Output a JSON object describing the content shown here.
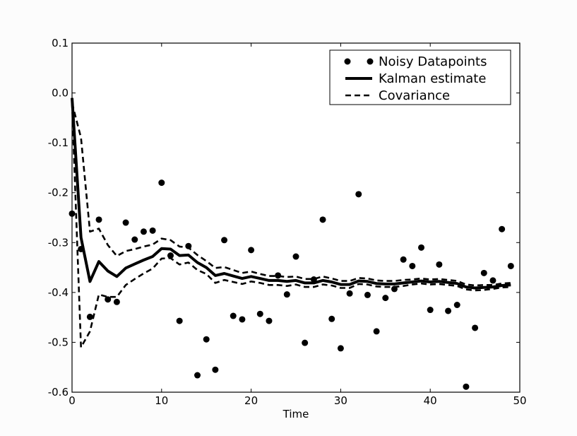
{
  "chart_data": {
    "type": "line",
    "title": "",
    "xlabel": "Time",
    "ylabel": "",
    "xlim": [
      0,
      50
    ],
    "ylim": [
      -0.6,
      0.1
    ],
    "xticks": [
      0,
      10,
      20,
      30,
      40,
      50
    ],
    "xtick_labels": [
      "0",
      "10",
      "20",
      "30",
      "40",
      "50"
    ],
    "yticks": [
      0.1,
      0.0,
      -0.1,
      -0.2,
      -0.3,
      -0.4,
      -0.5,
      -0.6
    ],
    "ytick_labels": [
      "0.1",
      "0.0",
      "-0.1",
      "-0.2",
      "-0.3",
      "-0.4",
      "-0.5",
      "-0.6"
    ],
    "grid": false,
    "legend": {
      "position": "top-right",
      "entries": [
        {
          "label": "Noisy Datapoints",
          "style": "markers"
        },
        {
          "label": "Kalman estimate",
          "style": "solid"
        },
        {
          "label": "Covariance",
          "style": "dashed"
        }
      ]
    },
    "colors": {
      "series": "#000000",
      "background": "#fcfcfc",
      "plot_area": "#ffffff"
    },
    "series": [
      {
        "name": "Noisy Datapoints",
        "style": "markers",
        "x": [
          0,
          1,
          2,
          3,
          4,
          5,
          6,
          7,
          8,
          9,
          10,
          11,
          12,
          13,
          14,
          15,
          16,
          17,
          18,
          19,
          20,
          21,
          22,
          23,
          24,
          25,
          26,
          27,
          28,
          29,
          30,
          31,
          32,
          33,
          34,
          35,
          36,
          37,
          38,
          39,
          40,
          41,
          42,
          43,
          44,
          45,
          46,
          47,
          48,
          49
        ],
        "y": [
          -0.242,
          -0.313,
          -0.449,
          -0.254,
          -0.414,
          -0.419,
          -0.26,
          -0.294,
          -0.278,
          -0.276,
          -0.18,
          -0.326,
          -0.457,
          -0.307,
          -0.566,
          -0.494,
          -0.555,
          -0.295,
          -0.447,
          -0.454,
          -0.315,
          -0.443,
          -0.457,
          -0.366,
          -0.404,
          -0.328,
          -0.501,
          -0.374,
          -0.254,
          -0.453,
          -0.512,
          -0.402,
          -0.203,
          -0.405,
          -0.478,
          -0.411,
          -0.393,
          -0.334,
          -0.347,
          -0.31,
          -0.435,
          -0.344,
          -0.437,
          -0.425,
          -0.589,
          -0.471,
          -0.361,
          -0.376,
          -0.273,
          -0.347
        ]
      },
      {
        "name": "Kalman estimate",
        "style": "solid",
        "x": [
          0,
          1,
          2,
          3,
          4,
          5,
          6,
          7,
          8,
          9,
          10,
          11,
          12,
          13,
          14,
          15,
          16,
          17,
          18,
          19,
          20,
          21,
          22,
          23,
          24,
          25,
          26,
          27,
          28,
          29,
          30,
          31,
          32,
          33,
          34,
          35,
          36,
          37,
          38,
          39,
          40,
          41,
          42,
          43,
          44,
          45,
          46,
          47,
          48,
          49
        ],
        "y": [
          -0.01,
          -0.29,
          -0.378,
          -0.338,
          -0.357,
          -0.368,
          -0.351,
          -0.343,
          -0.335,
          -0.328,
          -0.312,
          -0.313,
          -0.326,
          -0.325,
          -0.34,
          -0.35,
          -0.366,
          -0.362,
          -0.367,
          -0.372,
          -0.368,
          -0.372,
          -0.376,
          -0.376,
          -0.378,
          -0.376,
          -0.381,
          -0.381,
          -0.376,
          -0.379,
          -0.384,
          -0.384,
          -0.377,
          -0.378,
          -0.382,
          -0.383,
          -0.383,
          -0.381,
          -0.379,
          -0.377,
          -0.379,
          -0.378,
          -0.38,
          -0.382,
          -0.389,
          -0.391,
          -0.39,
          -0.389,
          -0.386,
          -0.385
        ]
      },
      {
        "name": "Covariance",
        "style": "dashed",
        "x": [
          0,
          1,
          2,
          3,
          4,
          5,
          6,
          7,
          8,
          9,
          10,
          11,
          12,
          13,
          14,
          15,
          16,
          17,
          18,
          19,
          20,
          21,
          22,
          23,
          24,
          25,
          26,
          27,
          28,
          29,
          30,
          31,
          32,
          33,
          34,
          35,
          36,
          37,
          38,
          39,
          40,
          41,
          42,
          43,
          44,
          45,
          46,
          47,
          48,
          49
        ],
        "y": [
          -0.02,
          -0.09,
          -0.278,
          -0.272,
          -0.305,
          -0.327,
          -0.317,
          -0.313,
          -0.308,
          -0.304,
          -0.292,
          -0.295,
          -0.308,
          -0.31,
          -0.325,
          -0.337,
          -0.351,
          -0.349,
          -0.355,
          -0.361,
          -0.358,
          -0.363,
          -0.367,
          -0.367,
          -0.369,
          -0.368,
          -0.373,
          -0.373,
          -0.368,
          -0.372,
          -0.377,
          -0.377,
          -0.371,
          -0.372,
          -0.376,
          -0.377,
          -0.377,
          -0.375,
          -0.374,
          -0.372,
          -0.374,
          -0.373,
          -0.375,
          -0.377,
          -0.384,
          -0.386,
          -0.385,
          -0.385,
          -0.382,
          -0.381
        ]
      },
      {
        "name": "",
        "style": "dashed",
        "x": [
          0,
          1,
          2,
          3,
          4,
          5,
          6,
          7,
          8,
          9,
          10,
          11,
          12,
          13,
          14,
          15,
          16,
          17,
          18,
          19,
          20,
          21,
          22,
          23,
          24,
          25,
          26,
          27,
          28,
          29,
          30,
          31,
          32,
          33,
          34,
          35,
          36,
          37,
          38,
          39,
          40,
          41,
          42,
          43,
          44,
          45,
          46,
          47,
          48,
          49
        ],
        "y": [
          -0.02,
          -0.51,
          -0.478,
          -0.404,
          -0.409,
          -0.409,
          -0.385,
          -0.373,
          -0.362,
          -0.352,
          -0.332,
          -0.331,
          -0.344,
          -0.34,
          -0.355,
          -0.363,
          -0.381,
          -0.375,
          -0.379,
          -0.383,
          -0.378,
          -0.381,
          -0.385,
          -0.385,
          -0.387,
          -0.384,
          -0.389,
          -0.389,
          -0.384,
          -0.386,
          -0.391,
          -0.391,
          -0.383,
          -0.384,
          -0.388,
          -0.389,
          -0.389,
          -0.387,
          -0.384,
          -0.382,
          -0.384,
          -0.383,
          -0.385,
          -0.387,
          -0.394,
          -0.396,
          -0.395,
          -0.393,
          -0.39,
          -0.389
        ]
      }
    ]
  }
}
